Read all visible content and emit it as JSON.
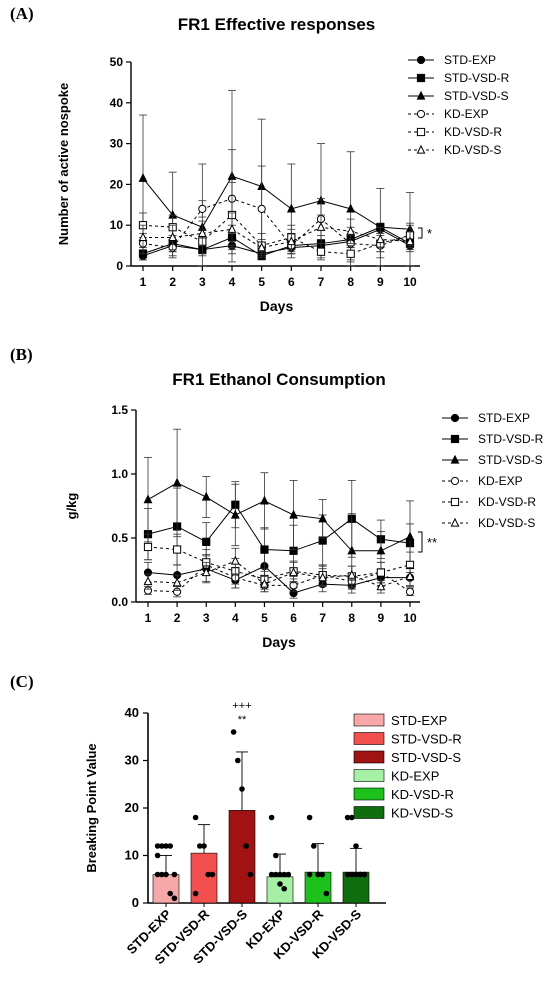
{
  "panels": {
    "A": "(A)",
    "B": "(B)",
    "C": "(C)"
  },
  "chart_data": [
    {
      "type": "line",
      "title": "FR1 Effective responses",
      "xlabel": "Days",
      "ylabel": "Number of active nospoke",
      "x": [
        1,
        2,
        3,
        4,
        5,
        6,
        7,
        8,
        9,
        10
      ],
      "ylim": [
        0,
        50
      ],
      "yticks": [
        0,
        10,
        20,
        30,
        40,
        50
      ],
      "sig_label": "*",
      "series": [
        {
          "name": "STD-EXP",
          "marker": "circle",
          "filled": true,
          "dashed": false,
          "values": [
            2.5,
            5,
            4,
            5,
            3,
            4.5,
            5,
            6,
            9,
            5
          ],
          "err": [
            1,
            1.5,
            1,
            2,
            1,
            1.5,
            1,
            1.5,
            1,
            1
          ]
        },
        {
          "name": "STD-VSD-R",
          "marker": "square",
          "filled": true,
          "dashed": false,
          "values": [
            3,
            5.5,
            4,
            7,
            2.5,
            5,
            5.5,
            6.5,
            9.5,
            5.5
          ],
          "err": [
            1.5,
            2,
            1.5,
            3,
            1,
            1.5,
            2,
            2,
            1,
            1
          ]
        },
        {
          "name": "STD-VSD-S",
          "marker": "triangle",
          "filled": true,
          "dashed": false,
          "values": [
            21.5,
            12.5,
            9.5,
            22,
            19.5,
            14,
            16,
            14,
            9.5,
            9
          ],
          "err": [
            15.5,
            10.5,
            15.5,
            21,
            16.5,
            11,
            14,
            14,
            9.5,
            9
          ]
        },
        {
          "name": "KD-EXP",
          "marker": "circle",
          "filled": false,
          "dashed": true,
          "values": [
            5.5,
            4.5,
            14,
            16.5,
            14,
            5,
            11.5,
            5.5,
            5,
            7.5
          ],
          "err": [
            2.5,
            2,
            2,
            12,
            10.5,
            3,
            5,
            4,
            3,
            3
          ]
        },
        {
          "name": "KD-VSD-R",
          "marker": "square",
          "filled": false,
          "dashed": true,
          "values": [
            10,
            9.5,
            6,
            12.5,
            5,
            7,
            3.5,
            3,
            5.5,
            7.5
          ],
          "err": [
            3,
            3,
            3,
            8,
            3,
            3,
            2,
            2,
            2,
            2.5
          ]
        },
        {
          "name": "KD-VSD-S",
          "marker": "triangle",
          "filled": false,
          "dashed": true,
          "values": [
            7,
            7,
            8,
            9,
            4.5,
            6,
            9.5,
            8.5,
            6.5,
            6
          ],
          "err": [
            3,
            3,
            3,
            4,
            2,
            3,
            3,
            3,
            3,
            2.5
          ]
        }
      ]
    },
    {
      "type": "line",
      "title": "FR1 Ethanol Consumption",
      "xlabel": "Days",
      "ylabel": "g/kg",
      "x": [
        1,
        2,
        3,
        4,
        5,
        6,
        7,
        8,
        9,
        10
      ],
      "ylim": [
        0,
        1.5
      ],
      "yticks": [
        0.0,
        0.5,
        1.0,
        1.5
      ],
      "ytick_labels": [
        "0.0",
        "0.5",
        "1.0",
        "1.5"
      ],
      "sig_label": "**",
      "series": [
        {
          "name": "STD-EXP",
          "marker": "circle",
          "filled": true,
          "dashed": false,
          "values": [
            0.23,
            0.21,
            0.26,
            0.17,
            0.28,
            0.07,
            0.14,
            0.13,
            0.19,
            0.19
          ],
          "err": [
            0.08,
            0.08,
            0.1,
            0.06,
            0.1,
            0.04,
            0.06,
            0.06,
            0.07,
            0.07
          ]
        },
        {
          "name": "STD-VSD-R",
          "marker": "square",
          "filled": true,
          "dashed": false,
          "values": [
            0.53,
            0.59,
            0.47,
            0.76,
            0.41,
            0.4,
            0.48,
            0.65,
            0.49,
            0.46
          ],
          "err": [
            0.2,
            0.3,
            0.15,
            0.18,
            0.17,
            0.2,
            0.2,
            0.3,
            0.15,
            0.15
          ]
        },
        {
          "name": "STD-VSD-S",
          "marker": "triangle",
          "filled": true,
          "dashed": false,
          "values": [
            0.8,
            0.93,
            0.82,
            0.68,
            0.79,
            0.68,
            0.65,
            0.4,
            0.4,
            0.51
          ],
          "err": [
            0.33,
            0.42,
            0.16,
            0.24,
            0.22,
            0.27,
            0.15,
            0.29,
            0.15,
            0.28
          ]
        },
        {
          "name": "KD-EXP",
          "marker": "circle",
          "filled": false,
          "dashed": true,
          "values": [
            0.09,
            0.08,
            0.29,
            0.19,
            0.13,
            0.13,
            0.21,
            0.16,
            0.23,
            0.08
          ],
          "err": [
            0.03,
            0.04,
            0.08,
            0.08,
            0.05,
            0.05,
            0.08,
            0.06,
            0.08,
            0.03
          ]
        },
        {
          "name": "KD-VSD-R",
          "marker": "square",
          "filled": false,
          "dashed": true,
          "values": [
            0.43,
            0.41,
            0.31,
            0.24,
            0.18,
            0.24,
            0.21,
            0.2,
            0.23,
            0.29
          ],
          "err": [
            0.1,
            0.12,
            0.1,
            0.1,
            0.08,
            0.08,
            0.08,
            0.08,
            0.08,
            0.1
          ]
        },
        {
          "name": "KD-VSD-S",
          "marker": "triangle",
          "filled": false,
          "dashed": true,
          "values": [
            0.16,
            0.15,
            0.23,
            0.32,
            0.14,
            0.23,
            0.19,
            0.21,
            0.12,
            0.2
          ],
          "err": [
            0.06,
            0.06,
            0.08,
            0.1,
            0.06,
            0.08,
            0.07,
            0.07,
            0.05,
            0.07
          ]
        }
      ]
    },
    {
      "type": "bar",
      "title": "",
      "xlabel": "",
      "ylabel": "Breaking Point Value",
      "ylim": [
        0,
        40
      ],
      "yticks": [
        0,
        10,
        20,
        30,
        40
      ],
      "categories": [
        "STD-EXP",
        "STD-VSD-R",
        "STD-VSD-S",
        "KD-EXP",
        "KD-VSD-R",
        "KD-VSD-S"
      ],
      "values": [
        6,
        10.5,
        19.5,
        5.5,
        6.5,
        6.5
      ],
      "sd": [
        4,
        6,
        12.3,
        4.8,
        6,
        5
      ],
      "colors": [
        "#f6a7a7",
        "#f44f4f",
        "#a11212",
        "#a6f0a6",
        "#1cc11c",
        "#0f6f0f"
      ],
      "points": [
        [
          12,
          12,
          12,
          12,
          6,
          6,
          6,
          6,
          2,
          1,
          10
        ],
        [
          18,
          12,
          12,
          6,
          6,
          2
        ],
        [
          36,
          30,
          24,
          12,
          6
        ],
        [
          18,
          10,
          6,
          6,
          6,
          6,
          6,
          4,
          3
        ],
        [
          18,
          12,
          6,
          6,
          2,
          6
        ],
        [
          18,
          18,
          12,
          6,
          6,
          6,
          6,
          6,
          6,
          6
        ]
      ],
      "annotations": [
        "+++",
        "**"
      ]
    }
  ]
}
